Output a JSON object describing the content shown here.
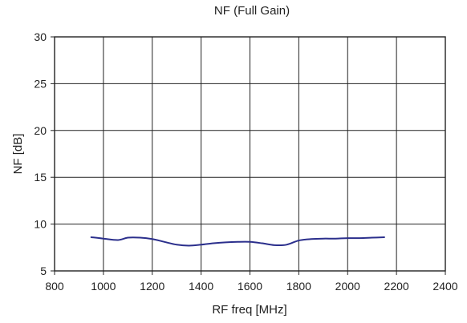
{
  "chart_data": {
    "type": "line",
    "title": "NF (Full Gain)",
    "xlabel": "RF freq [MHz]",
    "ylabel": "NF [dB]",
    "xlim": [
      800,
      2400
    ],
    "ylim": [
      5,
      30
    ],
    "xticks": [
      800,
      1000,
      1200,
      1400,
      1600,
      1800,
      2000,
      2200,
      2400
    ],
    "yticks": [
      5,
      10,
      15,
      20,
      25,
      30
    ],
    "grid": true,
    "legend": "none",
    "series": [
      {
        "color": "#2b2f8c",
        "x": [
          950,
          1000,
          1060,
          1100,
          1150,
          1200,
          1250,
          1300,
          1350,
          1400,
          1450,
          1500,
          1550,
          1600,
          1650,
          1700,
          1750,
          1800,
          1850,
          1900,
          1950,
          2000,
          2050,
          2100,
          2150
        ],
        "y": [
          8.6,
          8.45,
          8.3,
          8.55,
          8.55,
          8.4,
          8.1,
          7.8,
          7.7,
          7.8,
          7.95,
          8.05,
          8.1,
          8.1,
          7.95,
          7.75,
          7.8,
          8.25,
          8.4,
          8.45,
          8.45,
          8.5,
          8.5,
          8.55,
          8.6
        ]
      }
    ]
  }
}
